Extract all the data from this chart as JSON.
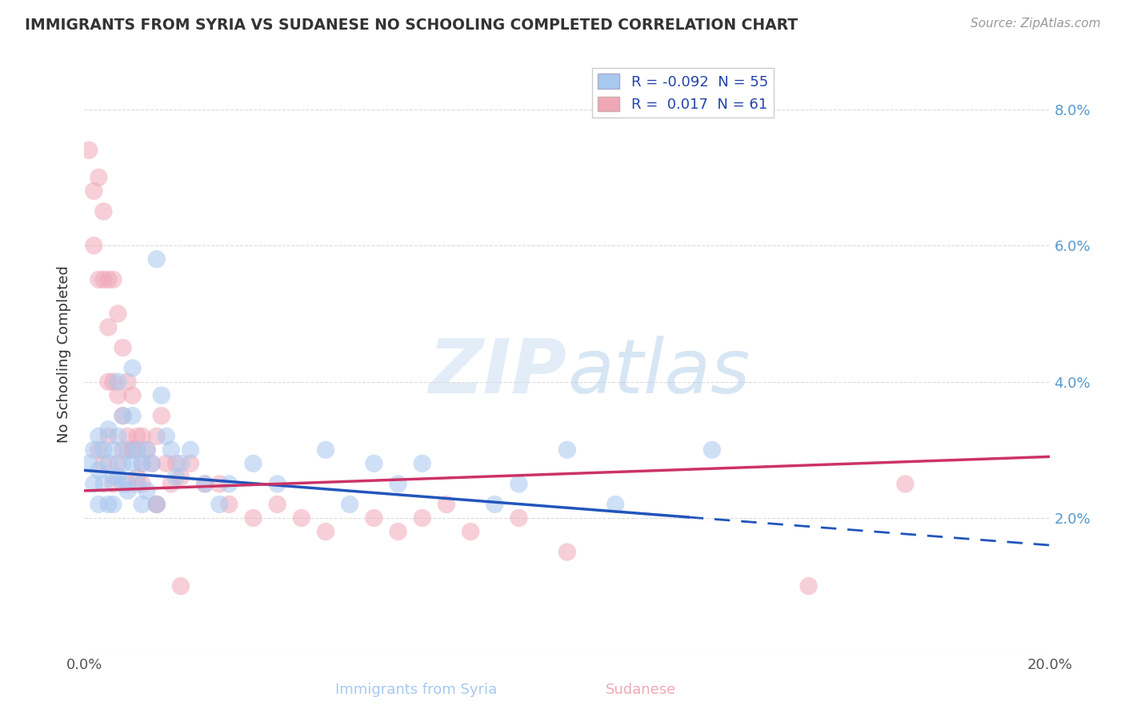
{
  "title": "IMMIGRANTS FROM SYRIA VS SUDANESE NO SCHOOLING COMPLETED CORRELATION CHART",
  "source": "Source: ZipAtlas.com",
  "xlabel_left": "Immigrants from Syria",
  "xlabel_right": "Sudanese",
  "ylabel": "No Schooling Completed",
  "xlim": [
    0.0,
    0.2
  ],
  "ylim": [
    0.0,
    0.088
  ],
  "yticks_right": [
    0.0,
    0.02,
    0.04,
    0.06,
    0.08
  ],
  "ytick_labels_right": [
    "",
    "2.0%",
    "4.0%",
    "6.0%",
    "8.0%"
  ],
  "xtick_labels": [
    "0.0%",
    "",
    "",
    "",
    "",
    "",
    "",
    "",
    "",
    "",
    "20.0%"
  ],
  "syria_R": -0.092,
  "syria_N": 55,
  "sudan_R": 0.017,
  "sudan_N": 61,
  "syria_color": "#a8c8f0",
  "sudan_color": "#f0a8b8",
  "syria_line_color": "#2255bb",
  "sudan_line_color": "#cc3366",
  "background_color": "#ffffff",
  "grid_color": "#cccccc",
  "watermark_zip": "ZIP",
  "watermark_atlas": "atlas",
  "legend_R_color": "#2244aa",
  "title_color": "#333333",
  "syria_line_x_start": 0.0,
  "syria_line_x_solid_end": 0.125,
  "syria_line_x_end": 0.2,
  "syria_line_y_start": 0.027,
  "syria_line_y_end": 0.016,
  "sudan_line_x_start": 0.0,
  "sudan_line_x_end": 0.2,
  "sudan_line_y_start": 0.024,
  "sudan_line_y_end": 0.029,
  "syria_scatter_x": [
    0.001,
    0.002,
    0.002,
    0.003,
    0.003,
    0.003,
    0.004,
    0.004,
    0.005,
    0.005,
    0.005,
    0.006,
    0.006,
    0.006,
    0.007,
    0.007,
    0.007,
    0.008,
    0.008,
    0.008,
    0.009,
    0.009,
    0.01,
    0.01,
    0.01,
    0.011,
    0.011,
    0.012,
    0.012,
    0.013,
    0.013,
    0.014,
    0.015,
    0.015,
    0.016,
    0.017,
    0.018,
    0.019,
    0.02,
    0.022,
    0.025,
    0.028,
    0.03,
    0.035,
    0.04,
    0.05,
    0.055,
    0.06,
    0.065,
    0.07,
    0.085,
    0.09,
    0.1,
    0.11,
    0.13
  ],
  "syria_scatter_y": [
    0.028,
    0.03,
    0.025,
    0.032,
    0.027,
    0.022,
    0.03,
    0.025,
    0.033,
    0.028,
    0.022,
    0.03,
    0.026,
    0.022,
    0.04,
    0.032,
    0.026,
    0.035,
    0.028,
    0.025,
    0.03,
    0.024,
    0.042,
    0.035,
    0.028,
    0.03,
    0.025,
    0.028,
    0.022,
    0.03,
    0.024,
    0.028,
    0.058,
    0.022,
    0.038,
    0.032,
    0.03,
    0.026,
    0.028,
    0.03,
    0.025,
    0.022,
    0.025,
    0.028,
    0.025,
    0.03,
    0.022,
    0.028,
    0.025,
    0.028,
    0.022,
    0.025,
    0.03,
    0.022,
    0.03
  ],
  "sudan_scatter_x": [
    0.001,
    0.002,
    0.002,
    0.003,
    0.003,
    0.004,
    0.004,
    0.005,
    0.005,
    0.005,
    0.006,
    0.006,
    0.007,
    0.007,
    0.008,
    0.008,
    0.009,
    0.009,
    0.01,
    0.01,
    0.011,
    0.011,
    0.012,
    0.012,
    0.013,
    0.014,
    0.015,
    0.015,
    0.016,
    0.017,
    0.018,
    0.019,
    0.02,
    0.022,
    0.025,
    0.028,
    0.03,
    0.035,
    0.04,
    0.045,
    0.05,
    0.06,
    0.065,
    0.07,
    0.075,
    0.08,
    0.09,
    0.1,
    0.15,
    0.17,
    0.003,
    0.004,
    0.005,
    0.006,
    0.007,
    0.008,
    0.009,
    0.01,
    0.012,
    0.015,
    0.02
  ],
  "sudan_scatter_y": [
    0.074,
    0.068,
    0.06,
    0.07,
    0.055,
    0.065,
    0.055,
    0.055,
    0.048,
    0.04,
    0.055,
    0.04,
    0.05,
    0.038,
    0.045,
    0.035,
    0.04,
    0.032,
    0.038,
    0.03,
    0.032,
    0.026,
    0.032,
    0.025,
    0.03,
    0.028,
    0.032,
    0.022,
    0.035,
    0.028,
    0.025,
    0.028,
    0.026,
    0.028,
    0.025,
    0.025,
    0.022,
    0.02,
    0.022,
    0.02,
    0.018,
    0.02,
    0.018,
    0.02,
    0.022,
    0.018,
    0.02,
    0.015,
    0.01,
    0.025,
    0.03,
    0.028,
    0.032,
    0.025,
    0.028,
    0.03,
    0.025,
    0.03,
    0.028,
    0.022,
    0.01
  ]
}
